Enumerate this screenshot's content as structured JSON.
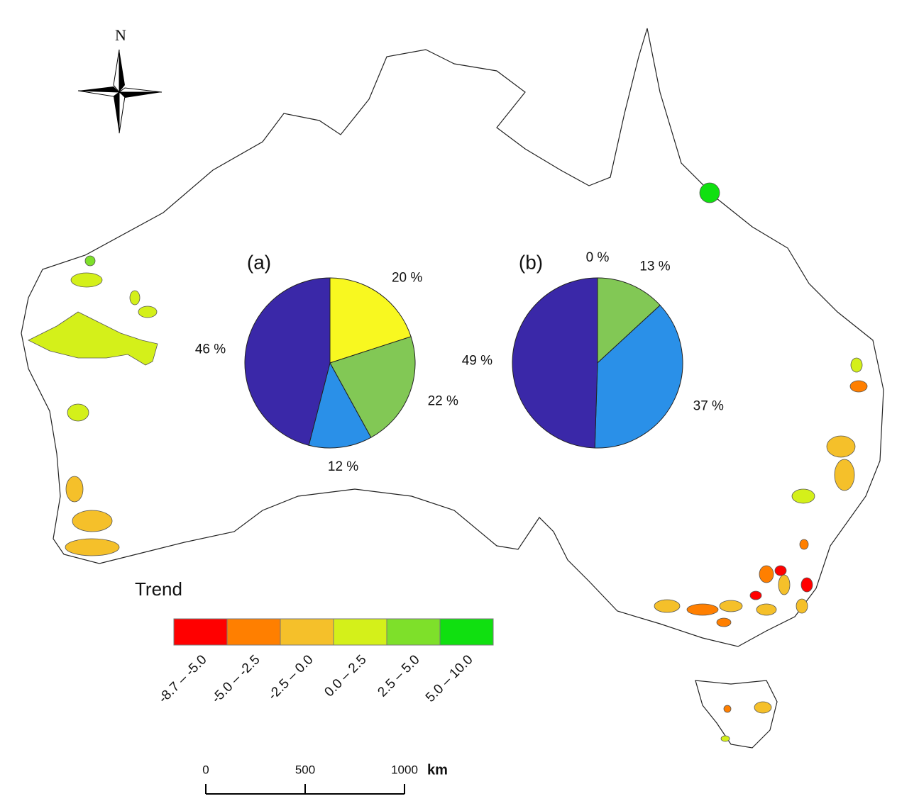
{
  "north_label": "N",
  "legend": {
    "title": "Trend",
    "classes": [
      {
        "label": "-8.7 – -5.0",
        "color": "#ff0000"
      },
      {
        "label": "-5.0 – -2.5",
        "color": "#ff7f00"
      },
      {
        "label": "-2.5 – 0.0",
        "color": "#f5c02a"
      },
      {
        "label": "0.0 – 2.5",
        "color": "#d4f01a"
      },
      {
        "label": "2.5 – 5.0",
        "color": "#7ee02a"
      },
      {
        "label": "5.0 – 10.0",
        "color": "#10e010"
      }
    ]
  },
  "scale_bar": {
    "ticks": [
      0,
      500,
      1000
    ],
    "unit": "km"
  },
  "chart_data": [
    {
      "type": "pie",
      "title": "(a)",
      "values": [
        20,
        22,
        12,
        46
      ],
      "value_labels": [
        "20 %",
        "22 %",
        "12 %",
        "46 %"
      ],
      "colors": [
        "#f8f820",
        "#82c855",
        "#2a90e8",
        "#3a28a8"
      ]
    },
    {
      "type": "pie",
      "title": "(b)",
      "values": [
        0,
        13,
        37,
        49
      ],
      "value_labels": [
        "0 %",
        "13 %",
        "37 %",
        "49 %"
      ],
      "colors": [
        "#f0c020",
        "#82c855",
        "#2a90e8",
        "#3a28a8"
      ]
    }
  ]
}
